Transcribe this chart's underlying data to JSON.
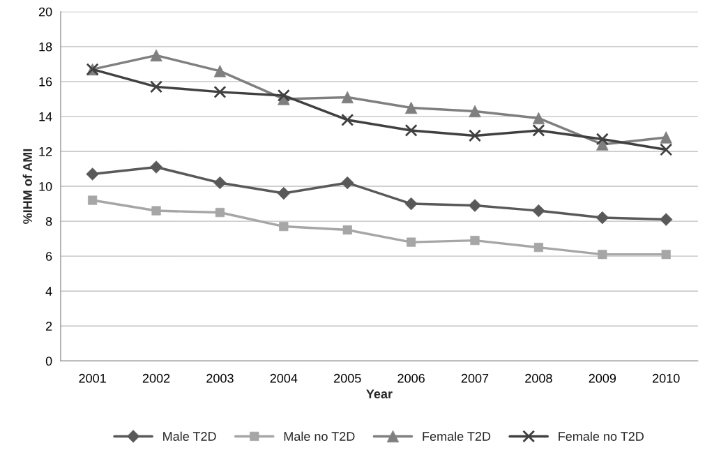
{
  "chart_data": {
    "type": "line",
    "xlabel": "Year",
    "ylabel": "%IHM of AMI",
    "categories": [
      "2001",
      "2002",
      "2003",
      "2004",
      "2005",
      "2006",
      "2007",
      "2008",
      "2009",
      "2010"
    ],
    "series": [
      {
        "name": "Male T2D",
        "color": "#595959",
        "marker": "diamond",
        "values": [
          10.7,
          11.1,
          10.2,
          9.6,
          10.2,
          9.0,
          8.9,
          8.6,
          8.2,
          8.1
        ]
      },
      {
        "name": "Male no T2D",
        "color": "#a6a6a6",
        "marker": "square",
        "values": [
          9.2,
          8.6,
          8.5,
          7.7,
          7.5,
          6.8,
          6.9,
          6.5,
          6.1,
          6.1
        ]
      },
      {
        "name": "Female T2D",
        "color": "#7f7f7f",
        "marker": "triangle",
        "values": [
          16.7,
          17.5,
          16.6,
          15.0,
          15.1,
          14.5,
          14.3,
          13.9,
          12.4,
          12.8
        ]
      },
      {
        "name": "Female no T2D",
        "color": "#404040",
        "marker": "cross",
        "values": [
          16.7,
          15.7,
          15.4,
          15.2,
          13.8,
          13.2,
          12.9,
          13.2,
          12.7,
          12.1
        ]
      }
    ],
    "ylim": [
      0,
      20
    ],
    "yticks": [
      0,
      2,
      4,
      6,
      8,
      10,
      12,
      14,
      16,
      18,
      20
    ],
    "grid": "y",
    "legend": "bottom",
    "line_style": "solid"
  }
}
